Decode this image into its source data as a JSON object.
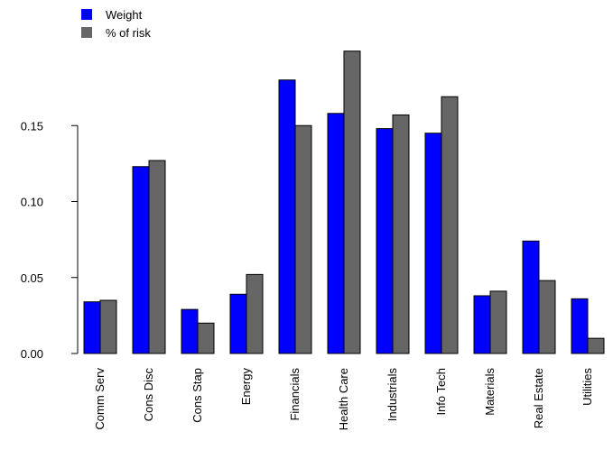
{
  "chart_data": {
    "type": "bar",
    "categories": [
      "Comm Serv",
      "Cons Disc",
      "Cons Stap",
      "Energy",
      "Financials",
      "Health Care",
      "Industrials",
      "Info Tech",
      "Materials",
      "Real Estate",
      "Utilities"
    ],
    "series": [
      {
        "name": "Weight",
        "color": "#0000ff",
        "values": [
          0.034,
          0.123,
          0.029,
          0.039,
          0.18,
          0.158,
          0.148,
          0.145,
          0.038,
          0.074,
          0.036
        ]
      },
      {
        "name": "% of risk",
        "color": "#666666",
        "values": [
          0.035,
          0.127,
          0.02,
          0.052,
          0.15,
          0.199,
          0.157,
          0.169,
          0.041,
          0.048,
          0.01
        ]
      }
    ],
    "ylim": [
      0,
      0.2
    ],
    "yticks": [
      {
        "value": 0,
        "label": "0.00"
      },
      {
        "value": 0.05,
        "label": "0.05"
      },
      {
        "value": 0.1,
        "label": "0.10"
      },
      {
        "value": 0.15,
        "label": "0.15"
      }
    ],
    "legend": "top-left"
  }
}
